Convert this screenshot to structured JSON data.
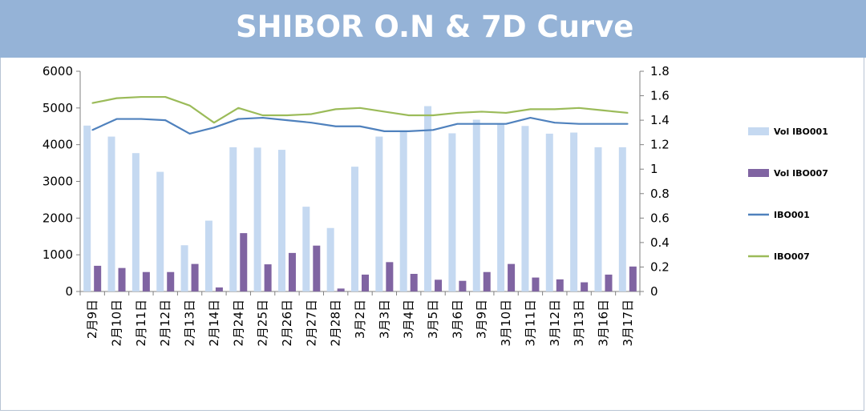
{
  "chart_data": {
    "type": "bar",
    "title": "SHIBOR O.N & 7D Curve",
    "categories": [
      "2月9日",
      "2月10日",
      "2月11日",
      "2月12日",
      "2月13日",
      "2月14日",
      "2月24日",
      "2月25日",
      "2月26日",
      "2月27日",
      "2月28日",
      "3月2日",
      "3月3日",
      "3月4日",
      "3月5日",
      "3月6日",
      "3月9日",
      "3月10日",
      "3月11日",
      "3月12日",
      "3月13日",
      "3月16日",
      "3月17日"
    ],
    "left_axis": {
      "ylim": [
        0,
        6000
      ],
      "ticks": [
        "0",
        "1000",
        "2000",
        "3000",
        "4000",
        "5000",
        "6000"
      ]
    },
    "right_axis": {
      "ylim": [
        0,
        1.8
      ],
      "ticks": [
        "0",
        "0.2",
        "0.4",
        "0.6",
        "0.8",
        "1",
        "1.2",
        "1.4",
        "1.6",
        "1.8"
      ]
    },
    "series": [
      {
        "name": "Vol IBO001",
        "type": "bar",
        "axis": "left",
        "color": "#c5d9f1",
        "values": [
          4520,
          4220,
          3770,
          3260,
          1260,
          1930,
          3930,
          3920,
          3860,
          2310,
          1730,
          3400,
          4220,
          4360,
          5050,
          4310,
          4680,
          4580,
          4510,
          4300,
          4330,
          3930,
          3930
        ]
      },
      {
        "name": "Vol IBO007",
        "type": "bar",
        "axis": "left",
        "color": "#8064a2",
        "values": [
          700,
          640,
          530,
          530,
          750,
          110,
          1590,
          740,
          1050,
          1250,
          80,
          460,
          800,
          480,
          320,
          290,
          530,
          750,
          380,
          330,
          250,
          460,
          680
        ]
      },
      {
        "name": "IBO001",
        "type": "line",
        "axis": "right",
        "color": "#4f81bd",
        "values": [
          1.32,
          1.41,
          1.41,
          1.4,
          1.29,
          1.34,
          1.41,
          1.42,
          1.4,
          1.38,
          1.35,
          1.35,
          1.31,
          1.31,
          1.32,
          1.37,
          1.37,
          1.37,
          1.42,
          1.38,
          1.37,
          1.37,
          1.37
        ]
      },
      {
        "name": "IBO007",
        "type": "line",
        "axis": "right",
        "color": "#9bbb59",
        "values": [
          1.54,
          1.58,
          1.59,
          1.59,
          1.52,
          1.38,
          1.5,
          1.44,
          1.44,
          1.45,
          1.49,
          1.5,
          1.47,
          1.44,
          1.44,
          1.46,
          1.47,
          1.46,
          1.49,
          1.49,
          1.5,
          1.48,
          1.46
        ]
      }
    ],
    "legend_position": "right",
    "grid": false
  }
}
